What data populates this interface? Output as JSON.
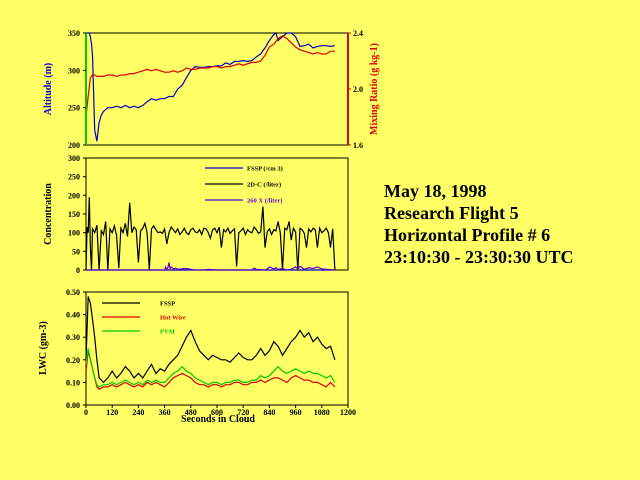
{
  "info": {
    "date": "May 18, 1998",
    "flight": "Research Flight 5",
    "profile": "Horizontal Profile # 6",
    "time_range": "23:10:30 - 23:30:30 UTC"
  },
  "colors": {
    "background": "#FFFF66",
    "blue": "#0000CC",
    "red": "#DD0000",
    "green": "#00CC00",
    "purple": "#6600CC",
    "black": "#000000"
  },
  "chart_data": [
    {
      "type": "line",
      "panel": "altitude",
      "ylabel": "Altitude (m)",
      "ylabel_right": "Mixing Ratio (g kg-1)",
      "ylim": [
        200,
        350
      ],
      "ylim_right": [
        1.6,
        2.4
      ],
      "xlim": [
        0,
        1200
      ],
      "y_ticks": [
        "350",
        "300",
        "250",
        "200"
      ],
      "y_ticks_right": [
        "2.4",
        "2.0",
        "1.6"
      ],
      "series": [
        {
          "axis": "left",
          "color": "#0000CC",
          "x": [
            0,
            5,
            10,
            15,
            20,
            25,
            30,
            40,
            50,
            60,
            70,
            80,
            100,
            120,
            140,
            160,
            180,
            200,
            220,
            240,
            260,
            280,
            300,
            320,
            340,
            360,
            380,
            400,
            420,
            440,
            460,
            480,
            500,
            520,
            540,
            560,
            580,
            600,
            620,
            640,
            660,
            680,
            700,
            720,
            740,
            760,
            780,
            800,
            820,
            840,
            860,
            870,
            880,
            900,
            920,
            940,
            960,
            980,
            1000,
            1020,
            1040,
            1060,
            1080,
            1100,
            1120,
            1140
          ],
          "values": [
            350,
            350,
            350,
            350,
            345,
            335,
            320,
            220,
            205,
            230,
            240,
            245,
            250,
            250,
            252,
            250,
            253,
            250,
            252,
            250,
            253,
            258,
            262,
            260,
            262,
            262,
            265,
            265,
            275,
            280,
            290,
            300,
            305,
            304,
            304,
            305,
            305,
            306,
            306,
            310,
            308,
            312,
            312,
            313,
            312,
            313,
            318,
            322,
            330,
            340,
            348,
            352,
            340,
            345,
            350,
            350,
            345,
            332,
            333,
            335,
            330,
            332,
            333,
            333,
            332,
            333
          ]
        },
        {
          "axis": "right",
          "color": "#DD0000",
          "x": [
            0,
            10,
            20,
            30,
            40,
            50,
            60,
            80,
            100,
            120,
            140,
            160,
            180,
            200,
            220,
            240,
            260,
            280,
            300,
            320,
            340,
            360,
            380,
            400,
            420,
            440,
            460,
            480,
            500,
            520,
            540,
            560,
            580,
            600,
            620,
            640,
            660,
            680,
            700,
            720,
            740,
            760,
            780,
            800,
            820,
            840,
            860,
            880,
            900,
            920,
            940,
            960,
            980,
            1000,
            1020,
            1040,
            1060,
            1080,
            1100,
            1120,
            1140
          ],
          "values": [
            1.8,
            1.95,
            2.08,
            2.1,
            2.1,
            2.09,
            2.09,
            2.09,
            2.1,
            2.1,
            2.09,
            2.1,
            2.1,
            2.11,
            2.11,
            2.12,
            2.13,
            2.14,
            2.13,
            2.14,
            2.13,
            2.12,
            2.12,
            2.13,
            2.12,
            2.13,
            2.15,
            2.14,
            2.14,
            2.15,
            2.15,
            2.15,
            2.16,
            2.16,
            2.15,
            2.16,
            2.16,
            2.17,
            2.18,
            2.17,
            2.18,
            2.19,
            2.19,
            2.2,
            2.24,
            2.3,
            2.32,
            2.36,
            2.38,
            2.36,
            2.33,
            2.3,
            2.28,
            2.27,
            2.26,
            2.25,
            2.26,
            2.25,
            2.25,
            2.27,
            2.27
          ]
        }
      ]
    },
    {
      "type": "line",
      "panel": "concentration",
      "ylabel": "Concentration",
      "ylim": [
        0,
        300
      ],
      "xlim": [
        0,
        1200
      ],
      "y_ticks": [
        "300",
        "250",
        "200",
        "150",
        "100",
        "50",
        "0"
      ],
      "series": [
        {
          "name": "FSSP (/cm 3)",
          "color": "#0000CC",
          "x": [
            0,
            1140
          ],
          "values": [
            0,
            0
          ]
        },
        {
          "name": "2D-C (/liter)",
          "color": "#000000",
          "x": [
            0,
            5,
            10,
            15,
            20,
            25,
            30,
            40,
            50,
            60,
            70,
            80,
            90,
            100,
            110,
            120,
            130,
            140,
            150,
            160,
            170,
            180,
            190,
            200,
            210,
            220,
            230,
            240,
            250,
            260,
            270,
            280,
            290,
            300,
            310,
            320,
            330,
            340,
            350,
            360,
            370,
            380,
            390,
            400,
            410,
            420,
            430,
            440,
            450,
            460,
            470,
            480,
            490,
            500,
            510,
            520,
            530,
            540,
            550,
            560,
            570,
            580,
            590,
            600,
            610,
            620,
            630,
            640,
            650,
            660,
            670,
            680,
            690,
            700,
            710,
            720,
            730,
            740,
            750,
            760,
            770,
            780,
            790,
            800,
            810,
            820,
            830,
            840,
            850,
            860,
            870,
            880,
            890,
            900,
            910,
            920,
            930,
            940,
            950,
            960,
            970,
            980,
            990,
            1000,
            1010,
            1020,
            1030,
            1040,
            1050,
            1060,
            1070,
            1080,
            1090,
            1100,
            1110,
            1120,
            1130,
            1140
          ],
          "values": [
            0,
            115,
            100,
            195,
            60,
            0,
            110,
            100,
            120,
            0,
            105,
            95,
            130,
            0,
            110,
            100,
            118,
            92,
            5,
            112,
            100,
            125,
            90,
            180,
            100,
            115,
            108,
            20,
            105,
            112,
            125,
            100,
            0,
            110,
            118,
            108,
            100,
            102,
            98,
            110,
            70,
            100,
            115,
            108,
            100,
            110,
            95,
            102,
            112,
            100,
            95,
            108,
            112,
            102,
            100,
            108,
            95,
            112,
            110,
            100,
            85,
            108,
            112,
            100,
            115,
            60,
            108,
            102,
            112,
            98,
            105,
            110,
            10,
            100,
            105,
            112,
            95,
            108,
            102,
            100,
            115,
            108,
            98,
            102,
            170,
            60,
            102,
            110,
            95,
            108,
            105,
            130,
            100,
            0,
            112,
            108,
            130,
            80,
            112,
            102,
            0,
            112,
            108,
            98,
            60,
            110,
            102,
            112,
            108,
            60,
            112,
            100,
            105,
            112,
            100,
            60,
            110,
            0
          ]
        },
        {
          "name": "260 X (/liter)",
          "color": "#6600CC",
          "x": [
            0,
            360,
            365,
            370,
            375,
            380,
            385,
            390,
            400,
            410,
            420,
            440,
            460,
            480,
            500,
            540,
            560,
            600,
            700,
            760,
            770,
            780,
            820,
            830,
            840,
            860,
            870,
            880,
            900,
            920,
            940,
            960,
            970,
            980,
            1000,
            1020,
            1040,
            1060,
            1080,
            1100,
            1140
          ],
          "values": [
            0,
            0,
            8,
            3,
            6,
            20,
            4,
            8,
            3,
            5,
            2,
            3,
            4,
            2,
            0,
            0,
            2,
            0,
            0,
            0,
            5,
            2,
            0,
            3,
            8,
            3,
            6,
            2,
            4,
            0,
            2,
            8,
            3,
            10,
            2,
            6,
            4,
            8,
            3,
            2,
            0
          ]
        }
      ]
    },
    {
      "type": "line",
      "panel": "lwc",
      "ylabel": "LWC (gm-3)",
      "xlabel": "Seconds in Cloud",
      "ylim": [
        0,
        0.5
      ],
      "xlim": [
        0,
        1200
      ],
      "y_ticks": [
        "0.50",
        "0.40",
        "0.30",
        "0.20",
        "0.10",
        "0.00"
      ],
      "x_ticks": [
        "0",
        "120",
        "240",
        "360",
        "480",
        "600",
        "720",
        "840",
        "960",
        "1080",
        "1200"
      ],
      "series": [
        {
          "name": "FSSP",
          "color": "#000000",
          "x": [
            0,
            10,
            20,
            30,
            40,
            50,
            60,
            80,
            100,
            120,
            140,
            160,
            180,
            200,
            220,
            240,
            260,
            280,
            300,
            320,
            340,
            360,
            380,
            400,
            420,
            440,
            460,
            480,
            500,
            520,
            540,
            560,
            580,
            600,
            620,
            640,
            660,
            680,
            700,
            720,
            740,
            760,
            780,
            800,
            820,
            840,
            860,
            880,
            900,
            920,
            940,
            960,
            980,
            1000,
            1020,
            1040,
            1060,
            1080,
            1100,
            1120,
            1140
          ],
          "values": [
            0.2,
            0.48,
            0.45,
            0.38,
            0.3,
            0.2,
            0.12,
            0.1,
            0.12,
            0.15,
            0.12,
            0.14,
            0.17,
            0.15,
            0.12,
            0.14,
            0.12,
            0.15,
            0.18,
            0.14,
            0.16,
            0.15,
            0.18,
            0.2,
            0.22,
            0.26,
            0.3,
            0.33,
            0.28,
            0.24,
            0.22,
            0.2,
            0.22,
            0.21,
            0.2,
            0.2,
            0.19,
            0.21,
            0.23,
            0.21,
            0.2,
            0.2,
            0.22,
            0.25,
            0.22,
            0.24,
            0.28,
            0.26,
            0.22,
            0.25,
            0.28,
            0.3,
            0.33,
            0.3,
            0.32,
            0.28,
            0.3,
            0.27,
            0.25,
            0.26,
            0.2
          ]
        },
        {
          "name": "Hot Wire",
          "color": "#DD0000",
          "x": [
            0,
            10,
            20,
            30,
            40,
            50,
            60,
            80,
            100,
            120,
            140,
            160,
            180,
            200,
            220,
            240,
            260,
            280,
            300,
            320,
            340,
            360,
            380,
            400,
            420,
            440,
            460,
            480,
            500,
            520,
            540,
            560,
            580,
            600,
            620,
            640,
            660,
            680,
            700,
            720,
            740,
            760,
            780,
            800,
            820,
            840,
            860,
            880,
            900,
            920,
            940,
            960,
            980,
            1000,
            1020,
            1040,
            1060,
            1080,
            1100,
            1120,
            1140
          ],
          "values": [
            0.15,
            0.24,
            0.2,
            0.16,
            0.12,
            0.08,
            0.07,
            0.08,
            0.08,
            0.09,
            0.08,
            0.09,
            0.1,
            0.09,
            0.08,
            0.09,
            0.08,
            0.1,
            0.09,
            0.1,
            0.09,
            0.08,
            0.1,
            0.12,
            0.13,
            0.14,
            0.13,
            0.12,
            0.1,
            0.09,
            0.09,
            0.08,
            0.09,
            0.09,
            0.08,
            0.09,
            0.09,
            0.1,
            0.1,
            0.09,
            0.09,
            0.1,
            0.1,
            0.11,
            0.1,
            0.11,
            0.12,
            0.12,
            0.11,
            0.1,
            0.12,
            0.13,
            0.12,
            0.11,
            0.11,
            0.1,
            0.1,
            0.09,
            0.08,
            0.1,
            0.08
          ]
        },
        {
          "name": "PVM",
          "color": "#00CC00",
          "x": [
            0,
            10,
            20,
            30,
            40,
            50,
            60,
            80,
            100,
            120,
            140,
            160,
            180,
            200,
            220,
            240,
            260,
            280,
            300,
            320,
            340,
            360,
            380,
            400,
            420,
            440,
            460,
            480,
            500,
            520,
            540,
            560,
            580,
            600,
            620,
            640,
            660,
            680,
            700,
            720,
            740,
            760,
            780,
            800,
            820,
            840,
            860,
            880,
            900,
            920,
            940,
            960,
            980,
            1000,
            1020,
            1040,
            1060,
            1080,
            1100,
            1120,
            1140
          ],
          "values": [
            0.18,
            0.25,
            0.2,
            0.16,
            0.12,
            0.09,
            0.08,
            0.09,
            0.09,
            0.1,
            0.09,
            0.1,
            0.11,
            0.1,
            0.09,
            0.1,
            0.09,
            0.11,
            0.1,
            0.11,
            0.1,
            0.1,
            0.12,
            0.14,
            0.15,
            0.17,
            0.15,
            0.14,
            0.12,
            0.11,
            0.1,
            0.09,
            0.1,
            0.1,
            0.09,
            0.1,
            0.1,
            0.11,
            0.11,
            0.1,
            0.1,
            0.11,
            0.11,
            0.13,
            0.12,
            0.13,
            0.15,
            0.17,
            0.15,
            0.14,
            0.15,
            0.16,
            0.15,
            0.14,
            0.15,
            0.14,
            0.14,
            0.13,
            0.12,
            0.13,
            0.1
          ]
        }
      ]
    }
  ]
}
